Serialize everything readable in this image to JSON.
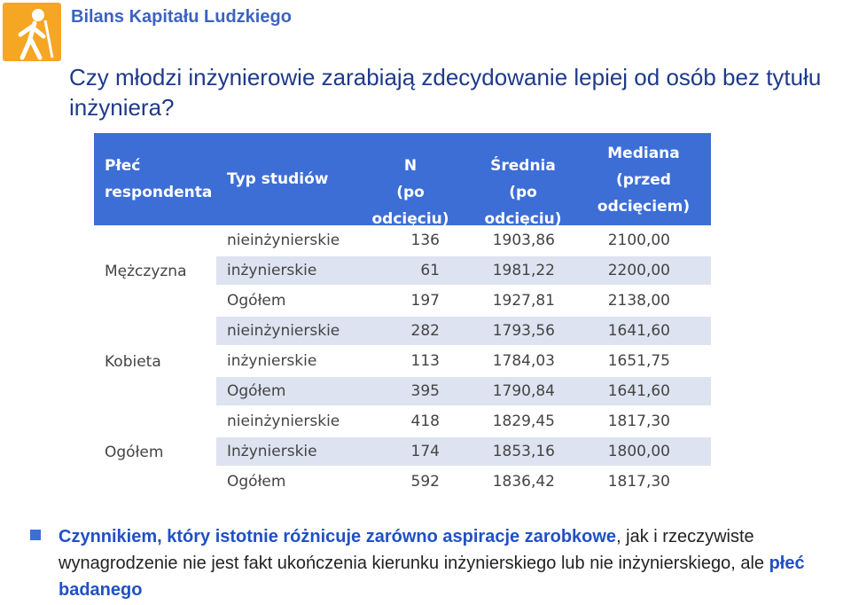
{
  "header": {
    "brand": "Bilans Kapitału Ludzkiego",
    "title": "Czy młodzi inżynierowie zarabiają zdecydowanie lepiej od osób bez tytułu inżyniera?"
  },
  "table": {
    "headers": {
      "gender_line1": "Płeć",
      "gender_line2": "respondenta",
      "type": "Typ studiów",
      "n_line1": "N",
      "n_line2": "(po odcięciu)",
      "avg_line1": "Średnia",
      "avg_line2": "(po odcięciu)",
      "med_line1": "Mediana",
      "med_line2": "(przed",
      "med_line3": "odcięciem)"
    },
    "groups": [
      {
        "label": "Mężczyzna",
        "rows": [
          {
            "type": "nieinżynierskie",
            "n": "136",
            "avg": "1903,86",
            "med": "2100,00"
          },
          {
            "type": "inżynierskie",
            "n": "61",
            "avg": "1981,22",
            "med": "2200,00"
          },
          {
            "type": "Ogółem",
            "n": "197",
            "avg": "1927,81",
            "med": "2138,00"
          }
        ]
      },
      {
        "label": "Kobieta",
        "rows": [
          {
            "type": "nieinżynierskie",
            "n": "282",
            "avg": "1793,56",
            "med": "1641,60"
          },
          {
            "type": "inżynierskie",
            "n": "113",
            "avg": "1784,03",
            "med": "1651,75"
          },
          {
            "type": "Ogółem",
            "n": "395",
            "avg": "1790,84",
            "med": "1641,60"
          }
        ]
      },
      {
        "label": "Ogółem",
        "rows": [
          {
            "type": "nieinżynierskie",
            "n": "418",
            "avg": "1829,45",
            "med": "1817,30"
          },
          {
            "type": "Inżynierskie",
            "n": "174",
            "avg": "1853,16",
            "med": "1800,00"
          },
          {
            "type": "Ogółem",
            "n": "592",
            "avg": "1836,42",
            "med": "1817,30"
          }
        ]
      }
    ]
  },
  "note": {
    "part1": "Czynnikiem, który istotnie różnicuje zarówno aspiracje zarobkowe",
    "part2": ", jak i rzeczywiste wynagrodzenie nie jest fakt ukończenia kierunku inżynierskiego lub nie inżynierskiego, ale ",
    "part3": "płeć badanego"
  },
  "colors": {
    "accent": "#3d6ed6",
    "brand": "#3d63c0",
    "logo": "#f5a623",
    "row_alt": "#dde3f0"
  },
  "icons": {
    "logo": "walking-person-icon",
    "bullet": "square-bullet-icon"
  }
}
